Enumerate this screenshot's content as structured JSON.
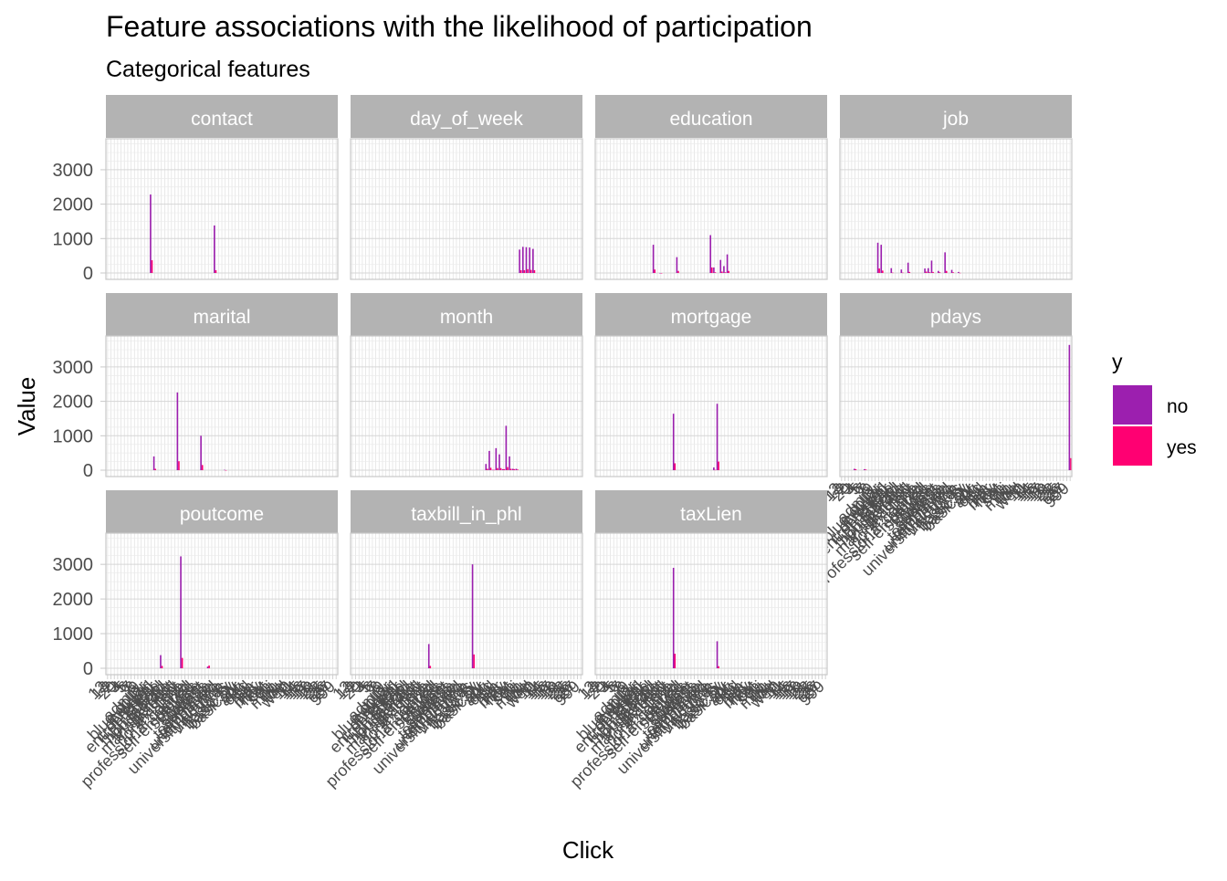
{
  "chart_data": {
    "type": "bar",
    "title": "Feature associations with the likelihood of participation",
    "subtitle": "Categorical features",
    "xlabel": "Click",
    "ylabel": "Value",
    "ylim": [
      0,
      3900
    ],
    "yticks": [
      0,
      1000,
      2000,
      3000
    ],
    "legend": {
      "title": "y",
      "position": "right",
      "entries": [
        {
          "label": "no",
          "color": "#9C1FAF"
        },
        {
          "label": "yes",
          "color": "#FF0072"
        }
      ]
    },
    "grid": true,
    "facet_layout": "4 columns x 3 rows, shared x and y axes",
    "categories": [
      "12",
      "13",
      "2",
      "20",
      "3",
      "4",
      "5",
      "6",
      "7",
      "8",
      "9",
      "admin.",
      "blue-collar",
      "cellular",
      "divorced",
      "entrepreneur",
      "failure",
      "high.school",
      "housemaid",
      "illiterate",
      "management",
      "married",
      "nonexistent",
      "no",
      "professional.course",
      "retired",
      "self-employed",
      "services",
      "single",
      "student",
      "success",
      "technician",
      "telephone",
      "unemployed",
      "university.degree",
      "unknown",
      "yes",
      "basic.4y",
      "basic.6y",
      "basic.9y",
      "apr",
      "aug",
      "dec",
      "jul",
      "jun",
      "mar",
      "may",
      "nov",
      "oct",
      "sep",
      "fri",
      "mon",
      "thu",
      "tue",
      "wed",
      "10",
      "11",
      "14",
      "15",
      "16",
      "17",
      "18",
      "19",
      "21",
      "22",
      "25",
      "26",
      "27",
      "999"
    ],
    "facets": [
      {
        "label": "contact",
        "bars": [
          {
            "category": "cellular",
            "no": 2280,
            "yes": 370
          },
          {
            "category": "telephone",
            "no": 1380,
            "yes": 80
          }
        ]
      },
      {
        "label": "day_of_week",
        "bars": [
          {
            "category": "fri",
            "no": 680,
            "yes": 80
          },
          {
            "category": "mon",
            "no": 760,
            "yes": 80
          },
          {
            "category": "thu",
            "no": 750,
            "yes": 110
          },
          {
            "category": "tue",
            "no": 740,
            "yes": 90
          },
          {
            "category": "wed",
            "no": 700,
            "yes": 80
          }
        ]
      },
      {
        "label": "education",
        "bars": [
          {
            "category": "basic.4y",
            "no": 380,
            "yes": 40
          },
          {
            "category": "basic.6y",
            "no": 200,
            "yes": 20
          },
          {
            "category": "basic.9y",
            "no": 540,
            "yes": 60
          },
          {
            "category": "high.school",
            "no": 820,
            "yes": 100
          },
          {
            "category": "illiterate",
            "no": 1,
            "yes": 0
          },
          {
            "category": "professional.course",
            "no": 460,
            "yes": 60
          },
          {
            "category": "university.degree",
            "no": 1100,
            "yes": 160
          },
          {
            "category": "unknown",
            "no": 160,
            "yes": 20
          }
        ]
      },
      {
        "label": "job",
        "bars": [
          {
            "category": "admin.",
            "no": 880,
            "yes": 130
          },
          {
            "category": "blue-collar",
            "no": 820,
            "yes": 70
          },
          {
            "category": "entrepreneur",
            "no": 140,
            "yes": 10
          },
          {
            "category": "housemaid",
            "no": 100,
            "yes": 10
          },
          {
            "category": "management",
            "no": 300,
            "yes": 30
          },
          {
            "category": "retired",
            "no": 130,
            "yes": 40
          },
          {
            "category": "self-employed",
            "no": 140,
            "yes": 20
          },
          {
            "category": "services",
            "no": 360,
            "yes": 30
          },
          {
            "category": "student",
            "no": 60,
            "yes": 20
          },
          {
            "category": "technician",
            "no": 600,
            "yes": 60
          },
          {
            "category": "unemployed",
            "no": 90,
            "yes": 20
          },
          {
            "category": "unknown",
            "no": 30,
            "yes": 5
          }
        ]
      },
      {
        "label": "marital",
        "bars": [
          {
            "category": "divorced",
            "no": 400,
            "yes": 40
          },
          {
            "category": "married",
            "no": 2260,
            "yes": 260
          },
          {
            "category": "single",
            "no": 1000,
            "yes": 150
          },
          {
            "category": "unknown",
            "no": 10,
            "yes": 1
          }
        ]
      },
      {
        "label": "month",
        "bars": [
          {
            "category": "apr",
            "no": 180,
            "yes": 40
          },
          {
            "category": "aug",
            "no": 560,
            "yes": 70
          },
          {
            "category": "dec",
            "no": 10,
            "yes": 10
          },
          {
            "category": "jul",
            "no": 640,
            "yes": 60
          },
          {
            "category": "jun",
            "no": 460,
            "yes": 60
          },
          {
            "category": "mar",
            "no": 30,
            "yes": 30
          },
          {
            "category": "may",
            "no": 1290,
            "yes": 90
          },
          {
            "category": "nov",
            "no": 400,
            "yes": 40
          },
          {
            "category": "oct",
            "no": 40,
            "yes": 30
          },
          {
            "category": "sep",
            "no": 40,
            "yes": 20
          }
        ]
      },
      {
        "label": "mortgage",
        "bars": [
          {
            "category": "no",
            "no": 1640,
            "yes": 200
          },
          {
            "category": "unknown",
            "no": 80,
            "yes": 10
          },
          {
            "category": "yes",
            "no": 1930,
            "yes": 250
          }
        ]
      },
      {
        "label": "pdays",
        "bars": [
          {
            "category": "3",
            "no": 40,
            "yes": 30
          },
          {
            "category": "6",
            "no": 30,
            "yes": 20
          },
          {
            "category": "999",
            "no": 3640,
            "yes": 350
          }
        ]
      },
      {
        "label": "poutcome",
        "bars": [
          {
            "category": "failure",
            "no": 380,
            "yes": 70
          },
          {
            "category": "nonexistent",
            "no": 3230,
            "yes": 300
          },
          {
            "category": "success",
            "no": 50,
            "yes": 80
          }
        ]
      },
      {
        "label": "taxbill_in_phl",
        "bars": [
          {
            "category": "no",
            "no": 700,
            "yes": 70
          },
          {
            "category": "yes",
            "no": 3000,
            "yes": 400
          }
        ]
      },
      {
        "label": "taxLien",
        "bars": [
          {
            "category": "no",
            "no": 2900,
            "yes": 420
          },
          {
            "category": "yes",
            "no": 780,
            "yes": 60
          }
        ]
      }
    ]
  }
}
